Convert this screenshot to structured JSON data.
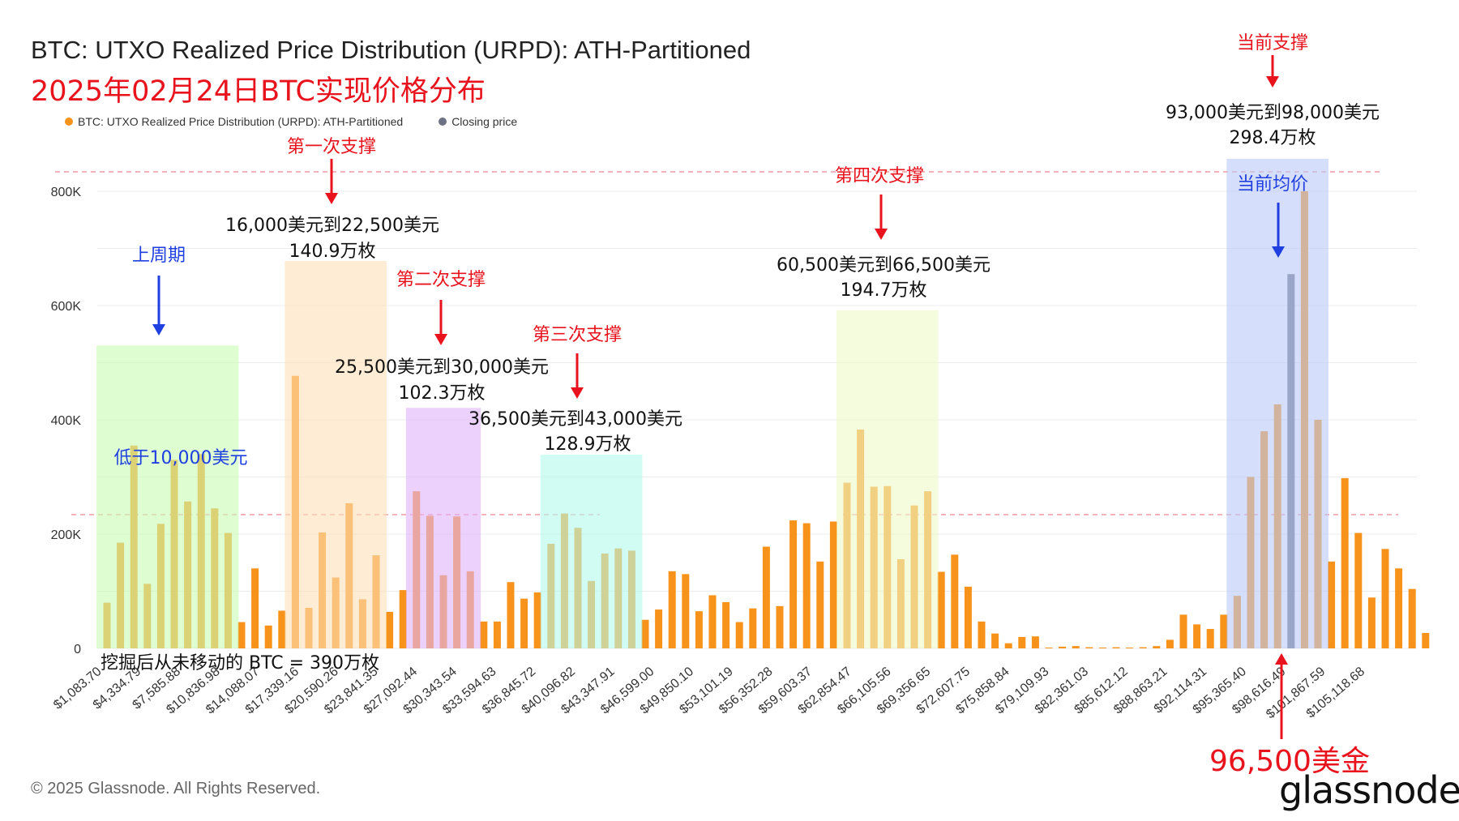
{
  "header": {
    "title": "BTC: UTXO Realized Price Distribution (URPD): ATH-Partitioned",
    "subtitle": "2025年02月24日BTC实现价格分布"
  },
  "legend": {
    "series_label": "BTC: UTXO Realized Price Distribution (URPD): ATH-Partitioned",
    "closing_label": "Closing price"
  },
  "footer": {
    "copyright": "© 2025 Glassnode. All Rights Reserved.",
    "logo_text": "glassnode"
  },
  "colors": {
    "bar": "#f7931a",
    "closing": "#6c7183",
    "red": "#e8131d",
    "blue": "#1f3fe0"
  },
  "chart_data": {
    "type": "bar",
    "ylim": [
      0,
      900000
    ],
    "yticks": [
      "0",
      "200K",
      "400K",
      "600K",
      "800K"
    ],
    "ytick_values": [
      0,
      200000,
      400000,
      600000,
      800000
    ],
    "xtick_labels": [
      "$1,083.70",
      "$4,334.79",
      "$7,585.88",
      "$10,836.98",
      "$14,088.07",
      "$17,339.16",
      "$20,590.26",
      "$23,841.35",
      "$27,092.44",
      "$30,343.54",
      "$33,594.63",
      "$36,845.72",
      "$40,096.82",
      "$43,347.91",
      "$46,599.00",
      "$49,850.10",
      "$53,101.19",
      "$56,352.28",
      "$59,603.37",
      "$62,854.47",
      "$66,105.56",
      "$69,356.65",
      "$72,607.75",
      "$75,858.84",
      "$79,109.93",
      "$82,361.03",
      "$85,612.12",
      "$88,863.21",
      "$92,114.31",
      "$95,365.40",
      "$98,616.49",
      "$101,867.59",
      "$105,118.68"
    ],
    "values": [
      80000,
      185000,
      355000,
      113000,
      218000,
      330000,
      257000,
      340000,
      245000,
      202000,
      46000,
      140000,
      40000,
      66000,
      477000,
      71000,
      203000,
      124000,
      254000,
      86000,
      163000,
      64000,
      102000,
      275000,
      232000,
      128000,
      231000,
      135000,
      47000,
      47000,
      116000,
      87000,
      98000,
      183000,
      236000,
      211000,
      118000,
      166000,
      175000,
      171000,
      50000,
      68000,
      135000,
      130000,
      65000,
      93000,
      81000,
      46000,
      70000,
      178000,
      74000,
      224000,
      219000,
      152000,
      222000,
      290000,
      383000,
      283000,
      284000,
      156000,
      250000,
      275000,
      134000,
      164000,
      108000,
      47000,
      26000,
      9000,
      20000,
      21000,
      1000,
      3000,
      4000,
      2000,
      1000,
      2000,
      1000,
      2000,
      4000,
      15000,
      59000,
      42000,
      34000,
      59000,
      92000,
      300000,
      380000,
      427000,
      655000,
      800000,
      400000,
      152000,
      298000,
      202000,
      89000,
      174000,
      140000,
      104000,
      27000
    ],
    "closing_index": 88,
    "regions": [
      {
        "from": 0,
        "to": 9,
        "top": 530000,
        "color": "#c8fbb3"
      },
      {
        "from": 14,
        "to": 20,
        "top": 678000,
        "color": "#fde0b8"
      },
      {
        "from": 23,
        "to": 27,
        "top": 421000,
        "color": "#dfb3fb"
      },
      {
        "from": 33,
        "to": 39,
        "top": 339000,
        "color": "#b3faec"
      },
      {
        "from": 55,
        "to": 61,
        "top": 592000,
        "color": "#eef8c6"
      },
      {
        "from": 84,
        "to": 90,
        "top": 857000,
        "color": "#b9c8f7"
      }
    ]
  },
  "annotations": {
    "prev_cycle": "上周期",
    "below_10k": "低于10,000美元",
    "support1": "第一次支撑",
    "support1_range": "16,000美元到22,500美元",
    "support1_amount": "140.9万枚",
    "support2": "第二次支撑",
    "support2_range": "25,500美元到30,000美元",
    "support2_amount": "102.3万枚",
    "support3": "第三次支撑",
    "support3_range": "36,500美元到43,000美元",
    "support3_amount": "128.9万枚",
    "support4": "第四次支撑",
    "support4_range": "60,500美元到66,500美元",
    "support4_amount": "194.7万枚",
    "current_support": "当前支撑",
    "current_range": "93,000美元到98,000美元",
    "current_amount": "298.4万枚",
    "current_avg": "当前均价",
    "never_moved": "挖掘后从未移动的 BTC = 390万枚",
    "closing_value": "96,500美金"
  }
}
